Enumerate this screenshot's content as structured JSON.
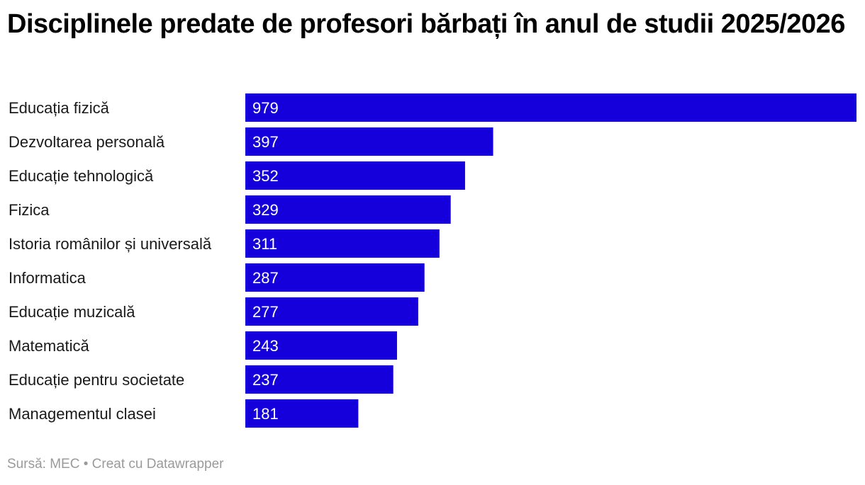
{
  "chart_data": {
    "type": "bar",
    "orientation": "horizontal",
    "title": "Disciplinele predate de profesori bărbați în anul de studii 2025/2026",
    "categories": [
      "Educația fizică",
      "Dezvoltarea personală",
      "Educație tehnologică",
      "Fizica",
      "Istoria românilor și universală",
      "Informatica",
      "Educație muzicală",
      "Matematică",
      "Educație pentru societate",
      "Managementul clasei"
    ],
    "values": [
      979,
      397,
      352,
      329,
      311,
      287,
      277,
      243,
      237,
      181
    ],
    "value_labels": [
      "979",
      "397",
      "352",
      "329",
      "311",
      "287",
      "277",
      "243",
      "237",
      "181"
    ],
    "xlim": [
      0,
      979
    ],
    "grid": false,
    "legend": "none",
    "bar_color": "#1500dc",
    "value_label_color": "#ffffff",
    "category_label_color": "#1a1a1a"
  },
  "footer": {
    "source": "Sursă: MEC",
    "separator": "•",
    "credit": "Creat cu Datawrapper"
  }
}
